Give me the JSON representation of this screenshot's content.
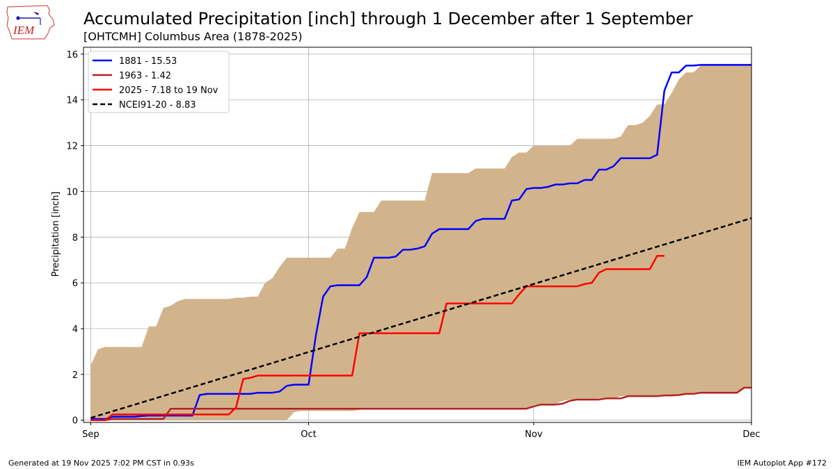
{
  "chart_data": {
    "type": "line",
    "title": "Accumulated Precipitation [inch] through 1 December after 1 September",
    "subtitle": "[OHTCMH] Columbus Area (1878-2025)",
    "ylabel": "Precipitation [inch]",
    "xlabel": "",
    "x_unit": "days since 1 September",
    "xlim": [
      -1,
      91
    ],
    "ylim": [
      -0.1,
      16.3
    ],
    "grid": true,
    "legend_position": "top-left",
    "x_ticks": [
      {
        "value": 0,
        "label": "Sep"
      },
      {
        "value": 30,
        "label": "Oct"
      },
      {
        "value": 61,
        "label": "Nov"
      },
      {
        "value": 91,
        "label": "Dec"
      }
    ],
    "y_ticks": [
      0,
      2,
      4,
      6,
      8,
      10,
      12,
      14,
      16
    ],
    "range_band": {
      "name": "range of all years",
      "color": "#d2b48c",
      "x": [
        0,
        1,
        2,
        3,
        4,
        5,
        6,
        7,
        8,
        9,
        10,
        11,
        12,
        13,
        14,
        15,
        16,
        17,
        18,
        19,
        20,
        21,
        22,
        23,
        24,
        25,
        26,
        27,
        28,
        29,
        30,
        31,
        32,
        33,
        34,
        35,
        36,
        37,
        38,
        39,
        40,
        41,
        42,
        43,
        44,
        45,
        46,
        47,
        48,
        49,
        50,
        51,
        52,
        53,
        54,
        55,
        56,
        57,
        58,
        59,
        60,
        61,
        62,
        63,
        64,
        65,
        66,
        67,
        68,
        69,
        70,
        71,
        72,
        73,
        74,
        75,
        76,
        77,
        78,
        79,
        80,
        81,
        82,
        83,
        84,
        85,
        86,
        87,
        88,
        89,
        90,
        91
      ],
      "upper": [
        2.4,
        3.1,
        3.2,
        3.2,
        3.2,
        3.2,
        3.2,
        3.2,
        4.1,
        4.1,
        4.9,
        5.0,
        5.2,
        5.3,
        5.3,
        5.3,
        5.3,
        5.3,
        5.3,
        5.3,
        5.35,
        5.35,
        5.4,
        5.4,
        6.0,
        6.2,
        6.7,
        7.1,
        7.1,
        7.1,
        7.1,
        7.1,
        7.1,
        7.1,
        7.5,
        7.5,
        8.4,
        9.1,
        9.1,
        9.1,
        9.6,
        9.6,
        9.6,
        9.6,
        9.6,
        9.6,
        9.6,
        10.8,
        10.8,
        10.8,
        10.8,
        10.8,
        10.8,
        11.0,
        11.0,
        11.0,
        11.0,
        11.0,
        11.5,
        11.7,
        11.7,
        12.0,
        12.0,
        12.0,
        12.0,
        12.0,
        12.0,
        12.3,
        12.3,
        12.3,
        12.3,
        12.3,
        12.3,
        12.4,
        12.9,
        12.9,
        13.0,
        13.3,
        13.8,
        13.8,
        14.3,
        14.9,
        15.2,
        15.2,
        15.5,
        15.5,
        15.5,
        15.5,
        15.5,
        15.5,
        15.5,
        15.5
      ],
      "lower": [
        0,
        0,
        0,
        0,
        0,
        0,
        0,
        0,
        0,
        0,
        0,
        0,
        0,
        0,
        0,
        0,
        0,
        0,
        0,
        0,
        0,
        0,
        0,
        0,
        0,
        0,
        0,
        0,
        0.35,
        0.4,
        0.4,
        0.4,
        0.4,
        0.4,
        0.4,
        0.4,
        0.4,
        0.45,
        0.5,
        0.5,
        0.5,
        0.5,
        0.5,
        0.5,
        0.5,
        0.5,
        0.5,
        0.5,
        0.5,
        0.5,
        0.5,
        0.5,
        0.5,
        0.5,
        0.5,
        0.5,
        0.5,
        0.5,
        0.5,
        0.5,
        0.5,
        0.65,
        0.7,
        0.7,
        0.7,
        0.85,
        0.9,
        0.9,
        0.9,
        0.9,
        0.95,
        0.95,
        0.95,
        1.05,
        1.05,
        1.05,
        1.05,
        1.05,
        1.05,
        1.1,
        1.1,
        1.15,
        1.15,
        1.2,
        1.2,
        1.2,
        1.2,
        1.2,
        1.2,
        1.2,
        1.4,
        1.42
      ]
    },
    "series": [
      {
        "name": "1881 - 15.53",
        "color": "#0000ff",
        "dash": "solid",
        "x": [
          0,
          1,
          2,
          3,
          4,
          5,
          6,
          7,
          8,
          9,
          10,
          11,
          12,
          13,
          14,
          15,
          16,
          17,
          18,
          19,
          20,
          21,
          22,
          23,
          24,
          25,
          26,
          27,
          28,
          29,
          30,
          31,
          32,
          33,
          34,
          35,
          36,
          37,
          38,
          39,
          40,
          41,
          42,
          43,
          44,
          45,
          46,
          47,
          48,
          49,
          50,
          51,
          52,
          53,
          54,
          55,
          56,
          57,
          58,
          59,
          60,
          61,
          62,
          63,
          64,
          65,
          66,
          67,
          68,
          69,
          70,
          71,
          72,
          73,
          74,
          75,
          76,
          77,
          78,
          79,
          80,
          81,
          82,
          83,
          84,
          85,
          86,
          87,
          88,
          89,
          90,
          91
        ],
        "values": [
          0.05,
          0.05,
          0.05,
          0.15,
          0.15,
          0.15,
          0.15,
          0.18,
          0.2,
          0.2,
          0.2,
          0.2,
          0.2,
          0.2,
          0.2,
          1.1,
          1.15,
          1.15,
          1.15,
          1.15,
          1.15,
          1.15,
          1.15,
          1.2,
          1.2,
          1.2,
          1.25,
          1.5,
          1.55,
          1.55,
          1.55,
          3.7,
          5.4,
          5.85,
          5.9,
          5.9,
          5.9,
          5.9,
          6.25,
          7.1,
          7.1,
          7.1,
          7.15,
          7.45,
          7.45,
          7.5,
          7.6,
          8.15,
          8.35,
          8.35,
          8.35,
          8.35,
          8.35,
          8.7,
          8.8,
          8.8,
          8.8,
          8.8,
          9.6,
          9.65,
          10.1,
          10.15,
          10.15,
          10.2,
          10.3,
          10.3,
          10.35,
          10.35,
          10.5,
          10.5,
          10.95,
          10.95,
          11.1,
          11.45,
          11.45,
          11.45,
          11.45,
          11.45,
          11.6,
          14.4,
          15.2,
          15.2,
          15.5,
          15.5,
          15.53,
          15.53,
          15.53,
          15.53,
          15.53,
          15.53,
          15.53,
          15.53
        ]
      },
      {
        "name": "1963 - 1.42",
        "color": "#b22222",
        "dash": "solid",
        "x": [
          0,
          1,
          2,
          3,
          4,
          5,
          6,
          7,
          8,
          9,
          10,
          11,
          12,
          13,
          14,
          15,
          16,
          17,
          18,
          19,
          20,
          21,
          22,
          23,
          24,
          25,
          26,
          27,
          28,
          29,
          30,
          31,
          32,
          33,
          34,
          35,
          36,
          37,
          38,
          39,
          40,
          41,
          42,
          43,
          44,
          45,
          46,
          47,
          48,
          49,
          50,
          51,
          52,
          53,
          54,
          55,
          56,
          57,
          58,
          59,
          60,
          61,
          62,
          63,
          64,
          65,
          66,
          67,
          68,
          69,
          70,
          71,
          72,
          73,
          74,
          75,
          76,
          77,
          78,
          79,
          80,
          81,
          82,
          83,
          84,
          85,
          86,
          87,
          88,
          89,
          90,
          91
        ],
        "values": [
          0,
          0,
          0,
          0.05,
          0.05,
          0.05,
          0.05,
          0.05,
          0.05,
          0.05,
          0.05,
          0.5,
          0.5,
          0.5,
          0.5,
          0.5,
          0.5,
          0.5,
          0.5,
          0.5,
          0.5,
          0.5,
          0.5,
          0.5,
          0.5,
          0.5,
          0.5,
          0.5,
          0.5,
          0.5,
          0.5,
          0.5,
          0.5,
          0.5,
          0.5,
          0.5,
          0.5,
          0.5,
          0.5,
          0.5,
          0.5,
          0.5,
          0.5,
          0.5,
          0.5,
          0.5,
          0.5,
          0.5,
          0.5,
          0.5,
          0.5,
          0.5,
          0.5,
          0.5,
          0.5,
          0.5,
          0.5,
          0.5,
          0.5,
          0.5,
          0.5,
          0.6,
          0.68,
          0.68,
          0.68,
          0.72,
          0.85,
          0.9,
          0.9,
          0.9,
          0.9,
          0.95,
          0.95,
          0.95,
          1.05,
          1.05,
          1.05,
          1.05,
          1.05,
          1.08,
          1.08,
          1.1,
          1.15,
          1.15,
          1.2,
          1.2,
          1.2,
          1.2,
          1.2,
          1.2,
          1.42,
          1.42
        ]
      },
      {
        "name": "2025 - 7.18 to 19 Nov",
        "color": "#ff0000",
        "dash": "solid",
        "x": [
          0,
          1,
          2,
          3,
          4,
          5,
          6,
          7,
          8,
          9,
          10,
          11,
          12,
          13,
          14,
          15,
          16,
          17,
          18,
          19,
          20,
          21,
          22,
          23,
          24,
          25,
          26,
          27,
          28,
          29,
          30,
          31,
          32,
          33,
          34,
          35,
          36,
          37,
          38,
          39,
          40,
          41,
          42,
          43,
          44,
          45,
          46,
          47,
          48,
          49,
          50,
          51,
          52,
          53,
          54,
          55,
          56,
          57,
          58,
          59,
          60,
          61,
          62,
          63,
          64,
          65,
          66,
          67,
          68,
          69,
          70,
          71,
          72,
          73,
          74,
          75,
          76,
          77,
          78,
          79
        ],
        "values": [
          0,
          0,
          0,
          0.25,
          0.25,
          0.25,
          0.25,
          0.25,
          0.25,
          0.25,
          0.25,
          0.25,
          0.25,
          0.25,
          0.25,
          0.25,
          0.25,
          0.25,
          0.25,
          0.25,
          0.55,
          1.8,
          1.85,
          1.95,
          1.95,
          1.95,
          1.95,
          1.95,
          1.95,
          1.95,
          1.95,
          1.95,
          1.95,
          1.95,
          1.95,
          1.95,
          1.95,
          3.8,
          3.8,
          3.8,
          3.8,
          3.8,
          3.8,
          3.8,
          3.8,
          3.8,
          3.8,
          3.8,
          3.8,
          5.1,
          5.1,
          5.1,
          5.1,
          5.1,
          5.1,
          5.1,
          5.1,
          5.1,
          5.1,
          5.5,
          5.85,
          5.85,
          5.85,
          5.85,
          5.85,
          5.85,
          5.85,
          5.85,
          5.95,
          6.0,
          6.45,
          6.6,
          6.6,
          6.6,
          6.6,
          6.6,
          6.6,
          6.6,
          7.18,
          7.18
        ]
      },
      {
        "name": "NCEI91-20 - 8.83",
        "color": "#000000",
        "dash": "dashed",
        "x": [
          0,
          91
        ],
        "values": [
          0.1,
          8.83
        ]
      }
    ]
  },
  "footer": {
    "left": "Generated at 19 Nov 2025 7:02 PM CST in 0.93s",
    "right": "IEM Autoplot App #172"
  },
  "logo": {
    "text": "IEM",
    "icon": "iowa-state-map-icon"
  }
}
